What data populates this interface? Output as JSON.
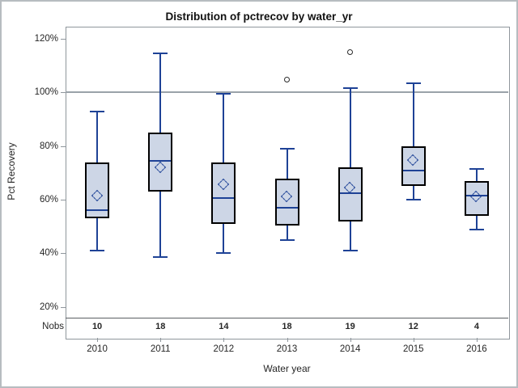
{
  "title": "Distribution of pctrecov by water_yr",
  "y_axis": {
    "label": "Pct Recovery",
    "tick_labels": [
      "120%",
      "100%",
      "80%",
      "60%",
      "40%",
      "20%"
    ]
  },
  "x_axis": {
    "label": "Water year",
    "tick_labels": [
      "2010",
      "2011",
      "2012",
      "2013",
      "2014",
      "2015",
      "2016"
    ]
  },
  "nobs": {
    "label": "Nobs",
    "values": [
      "10",
      "18",
      "14",
      "18",
      "19",
      "12",
      "4"
    ]
  },
  "colors": {
    "box_fill": "#cdd6e6",
    "box_border": "#000000",
    "line_blue": "#1e4296",
    "reference_line": "#9aa2a9",
    "axis": "#8f969c",
    "outlier": "#2b2b2b",
    "text": "#262626"
  },
  "chart_data": {
    "type": "box",
    "title": "Distribution of pctrecov by water_yr",
    "xlabel": "Water year",
    "ylabel": "Pct Recovery",
    "categories": [
      "2010",
      "2011",
      "2012",
      "2013",
      "2014",
      "2015",
      "2016"
    ],
    "nobs": [
      10,
      18,
      14,
      18,
      19,
      12,
      4
    ],
    "y_tick_values_pct": [
      120,
      100,
      80,
      60,
      40,
      20
    ],
    "ylim_pct": [
      8.5,
      124.5
    ],
    "reference_line_pct": 100,
    "grid": false,
    "legend": "none",
    "boxes": [
      {
        "category": "2010",
        "nobs": 10,
        "whisker_low": 41,
        "q1": 53,
        "median": 56,
        "mean": 61.5,
        "q3": 74,
        "whisker_high": 93,
        "outliers": []
      },
      {
        "category": "2011",
        "nobs": 18,
        "whisker_low": 38.5,
        "q1": 63,
        "median": 74.5,
        "mean": 72,
        "q3": 85,
        "whisker_high": 114.5,
        "outliers": []
      },
      {
        "category": "2012",
        "nobs": 14,
        "whisker_low": 40,
        "q1": 51,
        "median": 60.5,
        "mean": 65.5,
        "q3": 74,
        "whisker_high": 99.5,
        "outliers": []
      },
      {
        "category": "2013",
        "nobs": 18,
        "whisker_low": 45,
        "q1": 50.5,
        "median": 57,
        "mean": 61,
        "q3": 68,
        "whisker_high": 79,
        "outliers": [
          104.5
        ]
      },
      {
        "category": "2014",
        "nobs": 19,
        "whisker_low": 41,
        "q1": 52,
        "median": 62.5,
        "mean": 64.5,
        "q3": 72,
        "whisker_high": 101.5,
        "outliers": [
          115
        ]
      },
      {
        "category": "2015",
        "nobs": 12,
        "whisker_low": 60,
        "q1": 65,
        "median": 71,
        "mean": 74.5,
        "q3": 80,
        "whisker_high": 103.5,
        "outliers": []
      },
      {
        "category": "2016",
        "nobs": 4,
        "whisker_low": 49,
        "q1": 54,
        "median": 61.5,
        "mean": 61,
        "q3": 67,
        "whisker_high": 71.5,
        "outliers": []
      }
    ]
  }
}
